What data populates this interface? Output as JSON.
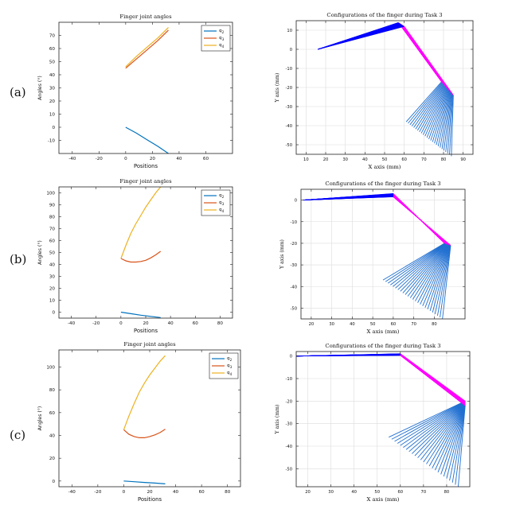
{
  "rows": [
    {
      "label": "(a)"
    },
    {
      "label": "(b)"
    },
    {
      "label": "(c)"
    }
  ],
  "chart_data": [
    {
      "type": "line",
      "panel": "(a) left",
      "title": "Finger joint angles",
      "xlabel": "Positions",
      "ylabel": "Angles (°)",
      "xlim": [
        -50,
        80
      ],
      "ylim": [
        -20,
        80
      ],
      "xticks": [
        -40,
        -20,
        0,
        20,
        40,
        60
      ],
      "yticks": [
        -10,
        0,
        10,
        20,
        30,
        40,
        50,
        60,
        70
      ],
      "grid": false,
      "legend": "top-right",
      "series": [
        {
          "name": "q2",
          "color": "#0072BD",
          "x": [
            0,
            8,
            16,
            24,
            32
          ],
          "y": [
            0,
            -4.5,
            -9.5,
            -14.5,
            -20
          ]
        },
        {
          "name": "q3",
          "color": "#D95319",
          "x": [
            0,
            8,
            16,
            24,
            32
          ],
          "y": [
            45,
            52,
            59,
            66,
            74
          ]
        },
        {
          "name": "q4",
          "color": "#EDB120",
          "x": [
            0,
            8,
            16,
            24,
            32
          ],
          "y": [
            46,
            54,
            61,
            68,
            76
          ]
        }
      ]
    },
    {
      "type": "line",
      "panel": "(a) right",
      "title": "Configurations of the finger during Task 3",
      "xlabel": "X axis (mm)",
      "ylabel": "Y axis (mm)",
      "xlim": [
        5,
        95
      ],
      "ylim": [
        -55,
        15
      ],
      "xticks": [
        10,
        20,
        30,
        40,
        50,
        60,
        70,
        80,
        90
      ],
      "yticks": [
        10,
        0,
        -10,
        -20,
        -30,
        -40,
        -50
      ],
      "grid": true,
      "pose_count": 25,
      "segments": [
        {
          "name": "proximal",
          "color": "#0000FF",
          "start": [
            16,
            0
          ],
          "end_first": [
            57,
            14
          ],
          "end_last": [
            60,
            12
          ]
        },
        {
          "name": "middle",
          "color": "#FF00FF",
          "end_first": [
            79,
            -17
          ],
          "end_last": [
            85,
            -24
          ]
        },
        {
          "name": "distal",
          "color": "#1F6FD1",
          "end_first": [
            61,
            -38
          ],
          "end_last": [
            84,
            -56
          ]
        }
      ]
    },
    {
      "type": "line",
      "panel": "(b) left",
      "title": "Finger joint angles",
      "xlabel": "Positions",
      "ylabel": "Angles (°)",
      "xlim": [
        -50,
        90
      ],
      "ylim": [
        -5,
        105
      ],
      "xticks": [
        -40,
        -20,
        0,
        20,
        40,
        60,
        80
      ],
      "yticks": [
        0,
        10,
        20,
        30,
        40,
        50,
        60,
        70,
        80,
        90,
        100
      ],
      "grid": false,
      "legend": "top-right",
      "series": [
        {
          "name": "q2",
          "color": "#0072BD",
          "x": [
            0,
            8,
            16,
            24,
            32
          ],
          "y": [
            0,
            -1.3,
            -2.5,
            -3.5,
            -4.5
          ]
        },
        {
          "name": "q3",
          "color": "#D95319",
          "x": [
            0,
            4,
            8,
            12,
            16,
            20,
            24,
            28,
            32
          ],
          "y": [
            45,
            43,
            42,
            42,
            42.5,
            43.5,
            45.5,
            48,
            51
          ]
        },
        {
          "name": "q4",
          "color": "#EDB120",
          "x": [
            0,
            4,
            8,
            12,
            16,
            20,
            24,
            28,
            32
          ],
          "y": [
            45,
            56,
            66,
            74,
            81,
            88,
            94,
            100,
            105
          ]
        }
      ]
    },
    {
      "type": "line",
      "panel": "(b) right",
      "title": "Configurations of the finger during Task 3",
      "xlabel": "X axis (mm)",
      "ylabel": "Y axis (mm)",
      "xlim": [
        15,
        95
      ],
      "ylim": [
        -55,
        5
      ],
      "xticks": [
        20,
        30,
        40,
        50,
        60,
        70,
        80
      ],
      "yticks": [
        0,
        -10,
        -20,
        -30,
        -40,
        -50
      ],
      "grid": true,
      "pose_count": 25,
      "segments": [
        {
          "name": "proximal",
          "color": "#0000FF",
          "start": [
            16,
            0
          ],
          "end_first": [
            60,
            3
          ],
          "end_last": [
            60,
            1.5
          ]
        },
        {
          "name": "middle",
          "color": "#FF00FF",
          "end_first": [
            85,
            -20
          ],
          "end_last": [
            88,
            -21
          ]
        },
        {
          "name": "distal",
          "color": "#1F6FD1",
          "end_first": [
            55,
            -37
          ],
          "end_last": [
            84,
            -55
          ]
        }
      ]
    },
    {
      "type": "line",
      "panel": "(c) left",
      "title": "Finger joint angles",
      "xlabel": "Positions",
      "ylabel": "Angles (°)",
      "xlim": [
        -50,
        90
      ],
      "ylim": [
        -5,
        115
      ],
      "xticks": [
        -40,
        -20,
        0,
        20,
        40,
        60,
        80
      ],
      "yticks": [
        0,
        20,
        40,
        60,
        80,
        100
      ],
      "grid": false,
      "legend": "top-right",
      "series": [
        {
          "name": "q2",
          "color": "#0072BD",
          "x": [
            0,
            8,
            16,
            24,
            32
          ],
          "y": [
            0,
            -0.6,
            -1.2,
            -1.8,
            -2.5
          ]
        },
        {
          "name": "q3",
          "color": "#D95319",
          "x": [
            0,
            4,
            8,
            12,
            16,
            20,
            24,
            28,
            32
          ],
          "y": [
            45,
            41,
            39,
            38,
            38,
            39,
            40.5,
            42.5,
            45.5
          ]
        },
        {
          "name": "q4",
          "color": "#EDB120",
          "x": [
            0,
            4,
            8,
            12,
            16,
            20,
            24,
            28,
            32
          ],
          "y": [
            45,
            57,
            68,
            78,
            86,
            93,
            99,
            105,
            110
          ]
        }
      ]
    },
    {
      "type": "line",
      "panel": "(c) right",
      "title": "Configurations of the finger during Task 3",
      "xlabel": "X axis (mm)",
      "ylabel": "Y axis (mm)",
      "xlim": [
        15,
        90
      ],
      "ylim": [
        -58,
        2
      ],
      "xticks": [
        20,
        30,
        40,
        50,
        60,
        70,
        80
      ],
      "yticks": [
        0,
        -10,
        -20,
        -30,
        -40,
        -50
      ],
      "grid": true,
      "pose_count": 25,
      "segments": [
        {
          "name": "proximal",
          "color": "#0000FF",
          "start": [
            15,
            0
          ],
          "end_first": [
            60,
            1
          ],
          "end_last": [
            60,
            0.3
          ]
        },
        {
          "name": "middle",
          "color": "#FF00FF",
          "end_first": [
            88,
            -20
          ],
          "end_last": [
            88,
            -22
          ]
        },
        {
          "name": "distal",
          "color": "#1F6FD1",
          "end_first": [
            55,
            -36
          ],
          "end_last": [
            85,
            -58
          ]
        }
      ]
    }
  ]
}
